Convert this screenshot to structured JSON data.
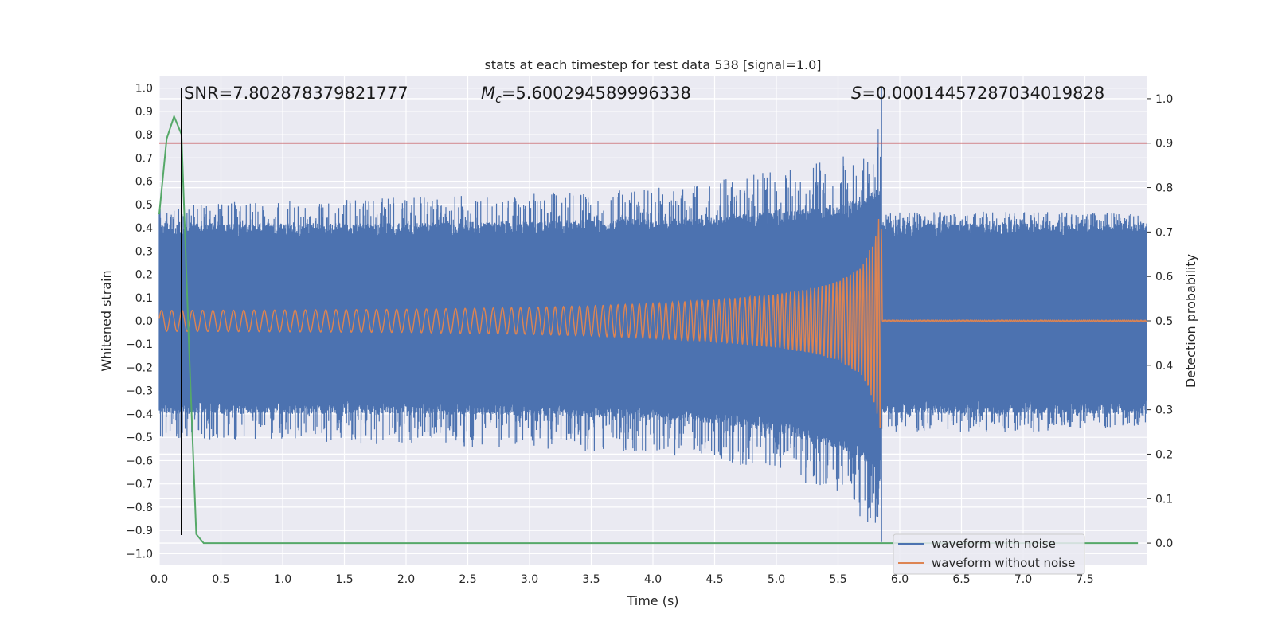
{
  "chart_data": {
    "type": "line",
    "title": "stats at each timestep for test data 538 [signal=1.0]",
    "xlabel": "Time (s)",
    "ylabel": "Whitened strain",
    "y2label": "Detection probability",
    "xlim": [
      0.0,
      8.0
    ],
    "ylim": [
      -1.05,
      1.05
    ],
    "y2lim": [
      -0.05,
      1.05
    ],
    "xticks": [
      0.0,
      0.5,
      1.0,
      1.5,
      2.0,
      2.5,
      3.0,
      3.5,
      4.0,
      4.5,
      5.0,
      5.5,
      6.0,
      6.5,
      7.0,
      7.5
    ],
    "yticks": [
      -1.0,
      -0.9,
      -0.8,
      -0.7,
      -0.6,
      -0.5,
      -0.4,
      -0.3,
      -0.2,
      -0.1,
      0.0,
      0.1,
      0.2,
      0.3,
      0.4,
      0.5,
      0.6,
      0.7,
      0.8,
      0.9,
      1.0
    ],
    "y2ticks": [
      0.0,
      0.1,
      0.2,
      0.3,
      0.4,
      0.5,
      0.6,
      0.7,
      0.8,
      0.9,
      1.0
    ],
    "grid": true,
    "legend_position": "lower-right",
    "annotations": {
      "snr": "SNR=7.802878379821777",
      "mc_symbol": "M",
      "mc_sub": "c",
      "mc_value": "=5.600294589996338",
      "s_symbol": "S",
      "s_value": "=0.00014457287034019828"
    },
    "series": [
      {
        "name": "waveform with noise",
        "color": "#4c72b0",
        "axis": "left",
        "envelope": {
          "t": [
            0.0,
            1.0,
            2.0,
            3.0,
            4.0,
            4.5,
            5.0,
            5.5,
            5.7,
            5.8,
            5.84,
            5.86,
            5.9,
            6.5,
            7.0,
            8.0
          ],
          "upper_typical": [
            0.42,
            0.42,
            0.42,
            0.43,
            0.44,
            0.45,
            0.47,
            0.5,
            0.53,
            0.56,
            0.6,
            0.42,
            0.42,
            0.42,
            0.42,
            0.42
          ],
          "upper_peak": [
            0.5,
            0.52,
            0.53,
            0.55,
            0.57,
            0.6,
            0.66,
            0.7,
            0.73,
            0.76,
            1.0,
            0.47,
            0.47,
            0.47,
            0.47,
            0.46
          ],
          "lower_typical": [
            -0.4,
            -0.4,
            -0.4,
            -0.41,
            -0.42,
            -0.44,
            -0.48,
            -0.55,
            -0.6,
            -0.65,
            -0.7,
            -0.4,
            -0.4,
            -0.4,
            -0.4,
            -0.4
          ],
          "lower_peak": [
            -0.5,
            -0.52,
            -0.53,
            -0.55,
            -0.57,
            -0.6,
            -0.65,
            -0.75,
            -0.85,
            -0.9,
            -1.0,
            -0.48,
            -0.48,
            -0.48,
            -0.48,
            -0.45
          ]
        }
      },
      {
        "name": "waveform without noise",
        "color": "#dd8452",
        "axis": "left",
        "envelope": {
          "t": [
            0.0,
            1.0,
            2.0,
            3.0,
            3.5,
            4.0,
            4.5,
            5.0,
            5.3,
            5.5,
            5.7,
            5.8,
            5.85,
            5.86,
            8.0
          ],
          "amplitude": [
            0.045,
            0.047,
            0.05,
            0.058,
            0.065,
            0.075,
            0.09,
            0.115,
            0.14,
            0.17,
            0.24,
            0.36,
            0.5,
            0.003,
            0.003
          ]
        }
      },
      {
        "name": "detection probability",
        "color": "#55a868",
        "axis": "right",
        "x": [
          0.0,
          0.06,
          0.12,
          0.18,
          0.24,
          0.3,
          0.36,
          8.0
        ],
        "y": [
          0.74,
          0.91,
          0.96,
          0.92,
          0.45,
          0.02,
          0.0,
          0.0
        ]
      }
    ],
    "threshold": {
      "axis": "right",
      "value": 0.9,
      "color": "#c44e52"
    },
    "marker": {
      "x": 0.18,
      "color": "#000000"
    },
    "legend": [
      "waveform with noise",
      "waveform without noise"
    ]
  }
}
